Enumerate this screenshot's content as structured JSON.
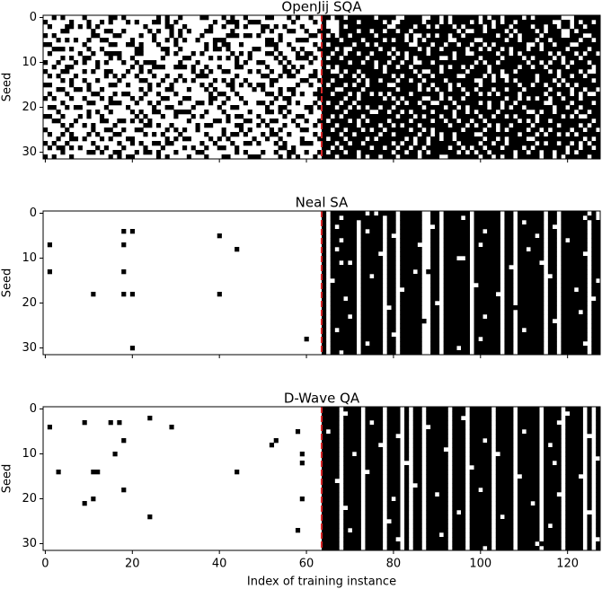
{
  "chart_data": [
    {
      "type": "heatmap",
      "title": "OpenJij SQA",
      "ylabel": "Seed",
      "xlim": [
        -0.5,
        127.5
      ],
      "ylim": [
        31.5,
        -0.5
      ],
      "xticks": [
        0,
        20,
        40,
        60,
        80,
        100,
        120
      ],
      "yticks": [
        0,
        10,
        20,
        30
      ],
      "show_xticklabels": false,
      "vline": {
        "x": 63.5,
        "color": "#d62728",
        "style": "dashed"
      },
      "colors": [
        "#ffffff",
        "#000000"
      ],
      "rows": [
        "2841a0290c5218a4dbf79e6bf5bd7e3f",
        "8225146a0139c0428f7d3eebd6b7f9ad",
        "46a8010c824a35108bfe7b5d7aef6db7",
        "0c1320a5461028c9cf6db7fe9bd7ae5f",
        "a018c245083b4206adf7e95b7f6bde73",
        "1526084a91c01a38f7bd6af9e7dbb7ed",
        "c0419a2205641c82bed7f3b6dafe5b9f",
        "3a24061905a0c451e9fb7d6fb5aedf7b",
        "4093c60a28151a2cdb6eaf7d9f6bf5d6",
        "0a614810c2a9053ab7df6be5f7bd7aef",
        "914a25c1100a6284fdb6d9bfeb7ed6bb",
        "26080a73a48c1150aff5b7eb5dfb6f7d",
        "8c5312802a6149a2cb7dfa6fbdb7f5e9",
        "5102a4491c0832c6f6bf5dbe7a9fbdb7",
        "0a484312a1520c19df5bb6f7e6d7bafd",
        "c22190a40a356824bade7dbaf7fb6d5f",
        "19a4028c4510a2c1e7bfbd5b6eddf7b6",
        "4418b12202c81a53dd6af7efb57beda9",
        "a2450a18c3240581fb7d5e6b7fdab6ef",
        "0831c4a11a4268a2b6ffad9df5b7e7bd",
        "6582104c2098130ded5b7ef6bdadfb6f",
        "10290a63c4411a84fbe6d7bdaf7e5bdb",
        "c8a40512282c4130d7bfbaedf6d7bea7",
        "31066a8041a32c49bd5ef7b6dbfab7fd",
        "0a5081a4160c5122ef7b5dfbad6f7deb",
        "8413260a90450a18dbadf6bf7b5ed7b6",
        "4a28c151045a2c82f6fb7dade7fbad5f",
        "1345180ac2a09211bbd7eb6dfb5e7ff5",
        "a4104a6c0913451cedbf5b7ef6dfadab",
        "5a8a2110a4c80340d7edb6fb5bbd7f6d",
        "0834c5a2180a24c9bb7f6d7eadf6db5f",
        "a20158284461c2a2ef5bbde7f6b7dafb"
      ]
    },
    {
      "type": "heatmap",
      "title": "Neal SA",
      "ylabel": "Seed",
      "xlim": [
        -0.5,
        127.5
      ],
      "ylim": [
        31.5,
        -0.5
      ],
      "xticks": [
        0,
        20,
        40,
        60,
        80,
        100,
        120
      ],
      "yticks": [
        0,
        10,
        20,
        30
      ],
      "show_xticklabels": false,
      "vline": {
        "x": 63.5,
        "color": "#d62728",
        "style": "dashed"
      },
      "colors": [
        "#ffffff",
        "#000000"
      ],
      "rows": [
        "0000000000000000bfd7be6fdfb7edfa",
        "0000000000000000b7fdbe6f5fb7edf6",
        "0000000000000000bf7dbe6fdfb5edfb",
        "0000000000000000af7dbe2fdfb7e9fb",
        "0000280000000000bf5dbe6fdbb7edfb",
        "0000000000800000bf7d3e6fdfb7adfb",
        "0000000000000000b77dbe6fdfb7ed7b",
        "4000200000000000bf7dbc6fd7b7edfb",
        "0000000000080000af7dbe6fdfb6edfb",
        "0000000000000000bf79be6fdfb7edf3",
        "0000000000000000bf7dbe6e5fb7edfb",
        "0000000000000000b57dbe6fdfb7cdfb",
        "0000000000000000bf7dbe6fdfa7edfb",
        "4000200000000000bf7dbaefdfb7edfb",
        "0000000000000000bf6dbe6fdfb7e5fb",
        "00000000000000009f7dbe6fdfb7edfa",
        "0000000000000000bf7dbe6fcfb7edfb",
        "0000000000000000bf7d9e6fdfb7eddb",
        "0010280000800000bf7dbe6fdf37edfb",
        "0000000000000000bb7dbe6fdfb7edf9",
        "0000000000000000bf7dbe4fdfb7edfb",
        "0000000000000000bf7cbe6fdfbfedfb",
        "0000000000000000bf7dbe6fdfb7edeb",
        "0000000000000000bd7dbe6fdbb7edfb",
        "0000000000000000bf7dbf6fdfb7e9fb",
        "0000000000000000bf7dbe6fdfb7edfb",
        "0000000000000000af7dbe6fdfb5edfb",
        "0000000000000000bf7d3e6fdfb7edfb",
        "0000000000000008bf7dbe6fd7b7edfb",
        "0000000000000000bf5dbe6fdfb7edf3",
        "0000080000000000bf7dbe6edfb7edfb",
        "0000000000000000b77dbe6fdfb7edfb"
      ]
    },
    {
      "type": "heatmap",
      "title": "D-Wave QA",
      "ylabel": "Seed",
      "xlabel": "Index of training instance",
      "xlim": [
        -0.5,
        127.5
      ],
      "ylim": [
        31.5,
        -0.5
      ],
      "xticks": [
        0,
        20,
        40,
        60,
        80,
        100,
        120
      ],
      "yticks": [
        0,
        10,
        20,
        30
      ],
      "show_xticklabels": true,
      "vline": {
        "x": 63.5,
        "color": "#d62728",
        "style": "dashed"
      },
      "colors": [
        "#ffffff",
        "#000000"
      ],
      "rows": [
        "0000000000000000f7bdd6fbbef7def5",
        "0000000000000000f3bdd6fbbef7de75",
        "0000008000000000f7bdd6fb3ef7def5",
        "0041400000000000f7add6fbbef7dcf5",
        "4000000400000000f7bdd67bbef7def5",
        "0000000000000020b7bdd6fbbef5def5",
        "0000000000000000f7bd96fbbef7def1",
        "0000200000000400f7bdd6fbbaf7def5",
        "0000000000000800f7b9d6fbbef7d6f5",
        "0000000000000000f7bdd6f3bef7def5",
        "0000800000000010f6bdd6fbbe77def5",
        "0000000000000000f7bdd6fbbef7def4",
        "0000000000000010f7bdc6fbbef7daf5",
        "0000000000000000f7bdd6fb9ef7def5",
        "1018000000080000f79dd6fbbef7def5",
        "0000000000000000f7bdd6fbbef3dee5",
        "0000000000000000e7bdd6fbbef7def5",
        "0000000000000000f7bdd2fbbef7def5",
        "0000200000000000f7bdd6fbb6f7def5",
        "0000000000000000f7bdd6dbbef7dcf5",
        "0010000000000010f7bd56fbbef7def5",
        "0040000000000000f7bdd6fbbef75ef5",
        "0000000000000000f3bdd6fbbef7def5",
        "0000000000000000f7bdd6fabef7def1",
        "0000008000000000f7bdd6fbbeb7def5",
        "0000000000000000f7bcd6fbbef7def5",
        "0000000000000000f7bdd6fbbef7d6f5",
        "0000000000000020f5bdd6fbbef7def5",
        "0000000000000000f7bdd6ebbef7def5",
        "0000000000000000f7bd96fbbef7def4",
        "0000000000000000f7bdd6fbbef7bef5",
        "0000000000000000f7bdd6fbbaf7def5"
      ]
    }
  ]
}
